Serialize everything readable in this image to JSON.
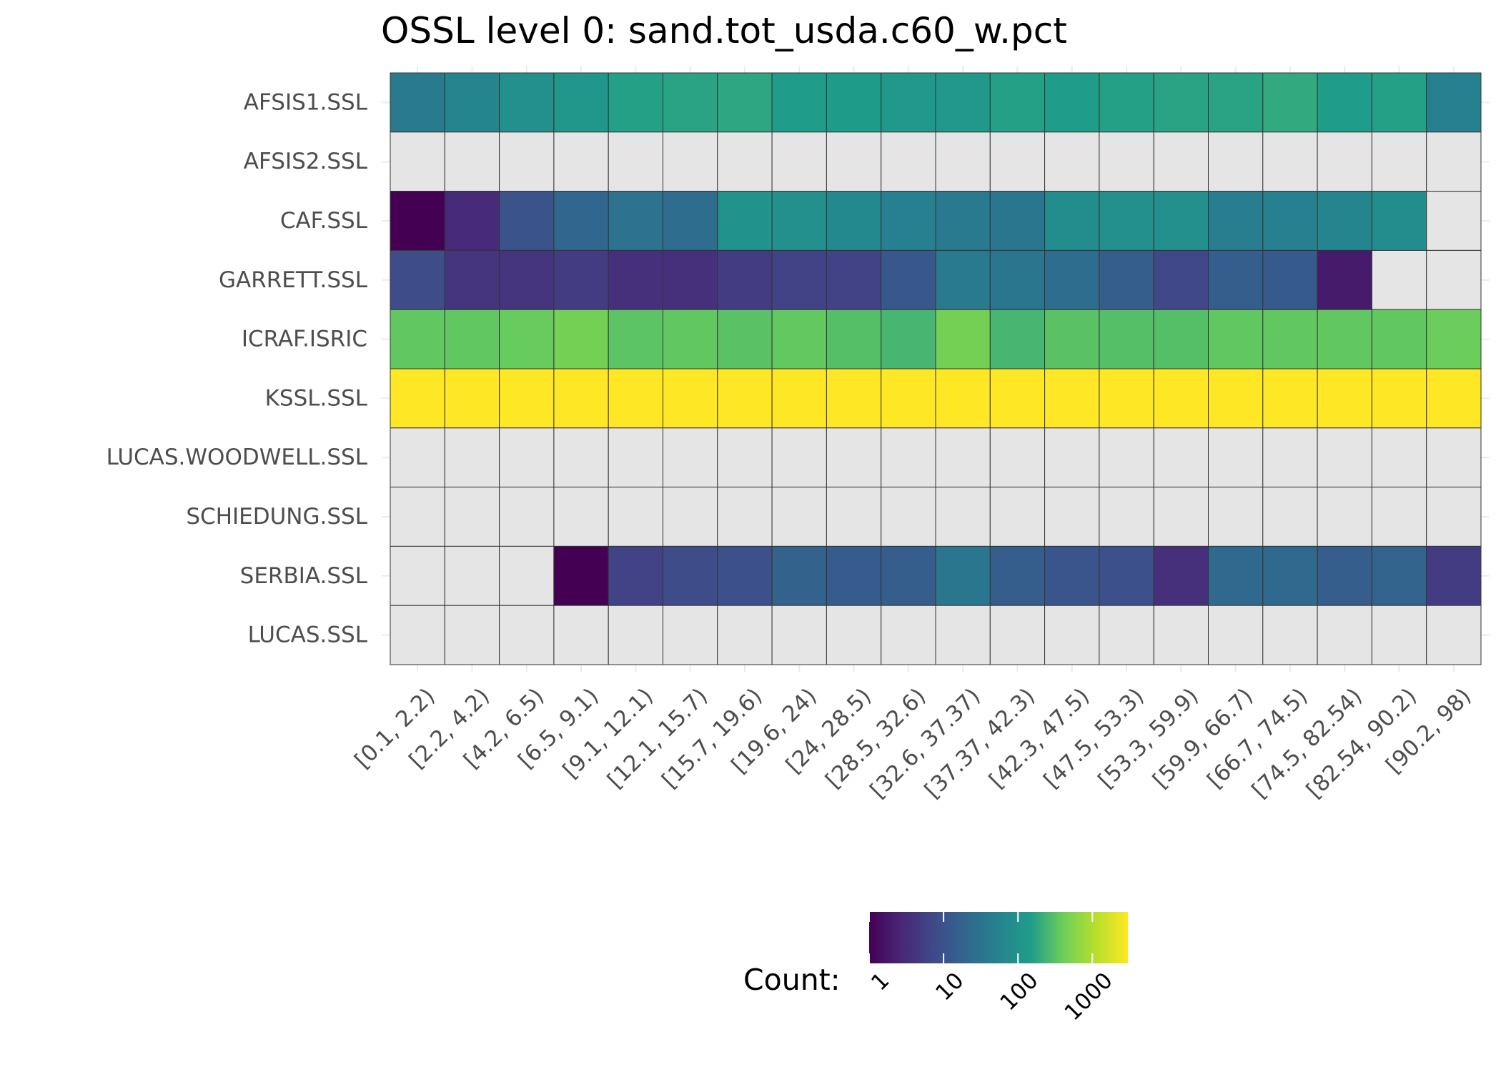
{
  "chart_data": {
    "type": "heatmap",
    "title": "OSSL level 0: sand.tot_usda.c60_w.pct",
    "xlabel": "",
    "ylabel": "",
    "x_categories": [
      "[0.1, 2.2)",
      "[2.2, 4.2)",
      "[4.2, 6.5)",
      "[6.5, 9.1)",
      "[9.1, 12.1)",
      "[12.1, 15.7)",
      "[15.7, 19.6)",
      "[19.6, 24)",
      "[24, 28.5)",
      "[28.5, 32.6)",
      "[32.6, 37.37)",
      "[37.37, 42.3)",
      "[42.3, 47.5)",
      "[47.5, 53.3)",
      "[53.3, 59.9)",
      "[59.9, 66.7)",
      "[66.7, 74.5)",
      "[74.5, 82.54)",
      "[82.54, 90.2)",
      "[90.2, 98)"
    ],
    "y_categories": [
      "AFSIS1.SSL",
      "AFSIS2.SSL",
      "CAF.SSL",
      "GARRETT.SSL",
      "ICRAF.ISRIC",
      "KSSL.SSL",
      "LUCAS.WOODWELL.SSL",
      "SCHIEDUNG.SSL",
      "SERBIA.SSL",
      "LUCAS.SSL"
    ],
    "values": [
      [
        40,
        60,
        90,
        120,
        160,
        170,
        180,
        150,
        140,
        130,
        130,
        160,
        150,
        160,
        170,
        170,
        190,
        150,
        160,
        50
      ],
      [
        null,
        null,
        null,
        null,
        null,
        null,
        null,
        null,
        null,
        null,
        null,
        null,
        null,
        null,
        null,
        null,
        null,
        null,
        null,
        null
      ],
      [
        1,
        3,
        10,
        20,
        30,
        25,
        100,
        90,
        70,
        50,
        40,
        35,
        80,
        90,
        90,
        45,
        50,
        60,
        80,
        null
      ],
      [
        8,
        4,
        4,
        5,
        3.5,
        3.5,
        5,
        6,
        6,
        12,
        40,
        35,
        25,
        15,
        7,
        15,
        13,
        2,
        null,
        null
      ],
      [
        350,
        350,
        380,
        450,
        330,
        350,
        320,
        360,
        300,
        250,
        450,
        250,
        320,
        300,
        300,
        350,
        350,
        350,
        350,
        400
      ],
      [
        3000,
        3000,
        3000,
        3000,
        3000,
        3000,
        3000,
        3000,
        3000,
        3000,
        3000,
        3000,
        3000,
        3000,
        3000,
        3000,
        3000,
        3000,
        3000,
        3000
      ],
      [
        null,
        null,
        null,
        null,
        null,
        null,
        null,
        null,
        null,
        null,
        null,
        null,
        null,
        null,
        null,
        null,
        null,
        null,
        null,
        null
      ],
      [
        null,
        null,
        null,
        null,
        null,
        null,
        null,
        null,
        null,
        null,
        null,
        null,
        null,
        null,
        null,
        null,
        null,
        null,
        null,
        null
      ],
      [
        null,
        null,
        null,
        1,
        6,
        8,
        9,
        17,
        14,
        15,
        35,
        15,
        11,
        9,
        3.5,
        22,
        22,
        15,
        18,
        5
      ],
      [
        null,
        null,
        null,
        null,
        null,
        null,
        null,
        null,
        null,
        null,
        null,
        null,
        null,
        null,
        null,
        null,
        null,
        null,
        null,
        null
      ]
    ],
    "colorscale": {
      "name": "viridis",
      "scale": "log10",
      "range": [
        1,
        3000
      ],
      "na_color": "#e5e5e5",
      "stops": [
        "#440154",
        "#482777",
        "#3f4a8a",
        "#31678e",
        "#26838f",
        "#1f9d8a",
        "#6cce5a",
        "#b6de2b",
        "#fee825"
      ]
    },
    "legend": {
      "title": "Count:",
      "ticks": [
        {
          "value": 1,
          "label": "1"
        },
        {
          "value": 10,
          "label": "10"
        },
        {
          "value": 100,
          "label": "100"
        },
        {
          "value": 1000,
          "label": "1000"
        }
      ],
      "position": "bottom"
    },
    "grid": true
  }
}
